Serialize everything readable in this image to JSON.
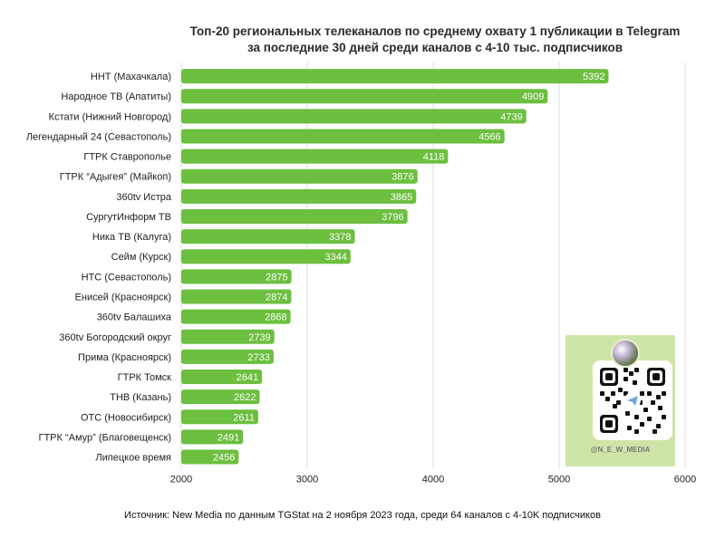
{
  "title_line1": "Топ-20 региональных телеканалов по среднему охвату 1 публикации в Telegram",
  "title_line2": "за последние 30 дней среди каналов с 4-10 тыс. подписчиков",
  "source": "Источник: New Media по данным TGStat на 2 ноября 2023 года, среди 64 каналов с 4-10K подписчиков",
  "qr_handle": "@N_E_W_MEDIA",
  "colors": {
    "bar": "#6cbf3f",
    "grid": "#dcdcdc",
    "qr_bg": "#cfe5a8"
  },
  "chart_data": {
    "type": "bar",
    "orientation": "horizontal",
    "title": "Топ-20 региональных телеканалов по среднему охвату 1 публикации в Telegram за последние 30 дней среди каналов с 4-10 тыс. подписчиков",
    "categories": [
      "ННТ (Махачкала)",
      "Народное ТВ (Апатиты)",
      "Кстати (Нижний Новгород)",
      "Легендарный 24 (Севастополь)",
      "ГТРК Ставрополье",
      "ГТРК “Адыгея” (Майкоп)",
      "360tv Истра",
      "СургутИнформ ТВ",
      "Ника ТВ (Калуга)",
      "Сейм (Курск)",
      "НТС (Севастополь)",
      "Енисей (Красноярск)",
      "360tv Балашиха",
      "360tv Богородский округ",
      "Прима (Красноярск)",
      "ГТРК Томск",
      "ТНВ (Казань)",
      "ОТС (Новосибирск)",
      "ГТРК “Амур” (Благовещенск)",
      "Липецкое время"
    ],
    "values": [
      5392,
      4909,
      4739,
      4566,
      4118,
      3876,
      3865,
      3796,
      3378,
      3344,
      2875,
      2874,
      2868,
      2739,
      2733,
      2641,
      2622,
      2611,
      2491,
      2456
    ],
    "xlim": [
      2000,
      6000
    ],
    "xticks": [
      2000,
      3000,
      4000,
      5000,
      6000
    ],
    "grid": true,
    "data_labels": "inside-end"
  }
}
